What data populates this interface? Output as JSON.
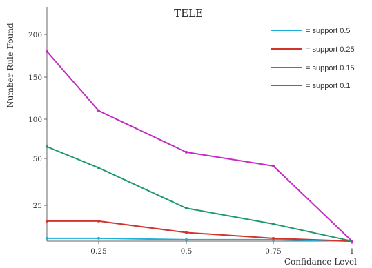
{
  "chart_data": {
    "type": "line",
    "title": "TELE",
    "xlabel": "Confidance Level",
    "ylabel": "Number Rule Found",
    "x": [
      0.1,
      0.25,
      0.5,
      0.75,
      1
    ],
    "x_ticks": [
      "0.25",
      "0.5",
      "0.75",
      "1"
    ],
    "y_ticks": [
      "25",
      "50",
      "100",
      "150",
      "200"
    ],
    "grid": false,
    "legend_position": "top-right",
    "series": [
      {
        "name": "= support 0.5",
        "color": "#1fb0d8",
        "values": [
          2,
          2,
          1,
          1,
          0
        ]
      },
      {
        "name": "= support 0.25",
        "color": "#d0342c",
        "values": [
          14,
          14,
          6,
          2,
          0
        ]
      },
      {
        "name": "= support 0.15",
        "color": "#1f9a6a",
        "values": [
          65,
          45,
          23,
          12,
          0
        ]
      },
      {
        "name": "= support 0.1",
        "color": "#c42bc4",
        "values": [
          180,
          110,
          58,
          46,
          0
        ]
      }
    ]
  }
}
